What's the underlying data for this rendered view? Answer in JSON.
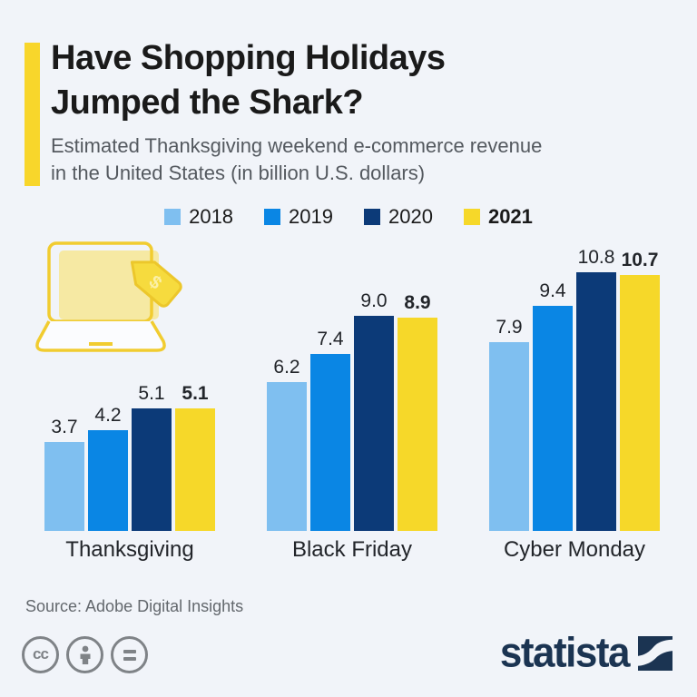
{
  "header": {
    "title_line1": "Have Shopping Holidays",
    "title_line2": "Jumped the Shark?",
    "subtitle_line1": "Estimated Thanksgiving weekend e-commerce revenue",
    "subtitle_line2": "in the United States (in billion U.S. dollars)"
  },
  "chart_data": {
    "type": "bar",
    "title": "Have Shopping Holidays Jumped the Shark?",
    "subtitle": "Estimated Thanksgiving weekend e-commerce revenue in the United States (in billion U.S. dollars)",
    "categories": [
      "Thanksgiving",
      "Black Friday",
      "Cyber Monday"
    ],
    "series": [
      {
        "name": "2018",
        "color": "#7FBFF0",
        "bold": false,
        "values": [
          3.7,
          6.2,
          7.9
        ]
      },
      {
        "name": "2019",
        "color": "#0A86E4",
        "bold": false,
        "values": [
          4.2,
          7.4,
          9.4
        ]
      },
      {
        "name": "2020",
        "color": "#0C3A78",
        "bold": false,
        "values": [
          5.1,
          9.0,
          10.8
        ]
      },
      {
        "name": "2021",
        "color": "#F6D829",
        "bold": true,
        "values": [
          5.1,
          8.9,
          10.7
        ]
      }
    ],
    "xlabel": "",
    "ylabel": "",
    "ylim": [
      0,
      10.8
    ],
    "value_labels": true,
    "grid": false,
    "legend_position": "top-center"
  },
  "footer": {
    "source": "Source: Adobe Digital Insights",
    "license_icons": [
      "cc-icon",
      "attribution-person-icon",
      "no-derivatives-equals-icon"
    ],
    "brand": "statista"
  },
  "colors": {
    "background": "#F1F4F9",
    "accent_yellow": "#F8D62B",
    "title": "#1A1A1A",
    "subtitle": "#54595F",
    "statista_navy": "#1B3452",
    "license_gray": "#7F8387"
  }
}
